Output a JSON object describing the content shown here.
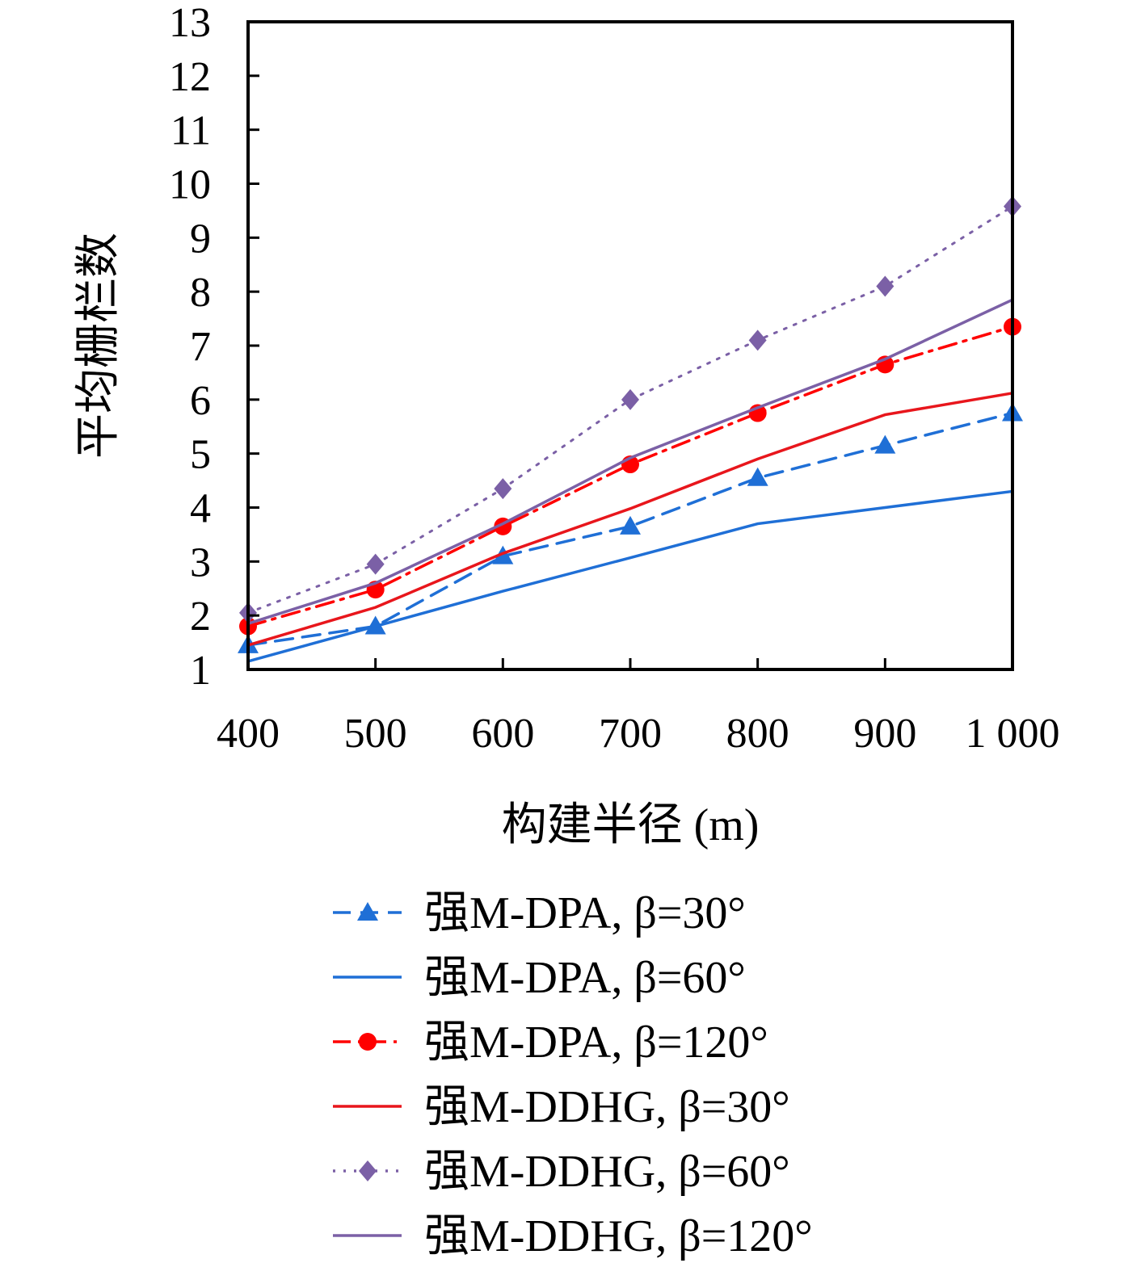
{
  "chart_data": {
    "type": "line",
    "xlabel": "构建半径 (m)",
    "ylabel": "平均栅栏数",
    "x": [
      400,
      500,
      600,
      700,
      800,
      900,
      1000
    ],
    "x_tick_labels": [
      "400",
      "500",
      "600",
      "700",
      "800",
      "900",
      "1 000"
    ],
    "ylim": [
      1,
      13
    ],
    "y_ticks": [
      1,
      2,
      3,
      4,
      5,
      6,
      7,
      8,
      9,
      10,
      11,
      12,
      13
    ],
    "grid": false,
    "legend_position": "below",
    "series": [
      {
        "name": "强M-DPA,  β=30°",
        "values": [
          1.45,
          1.8,
          3.1,
          3.65,
          4.55,
          5.15,
          5.75
        ],
        "color": "#1f6fd6",
        "line": "dashed",
        "marker": "triangle"
      },
      {
        "name": "强M-DPA,  β=60°",
        "values": [
          1.15,
          1.8,
          2.45,
          3.07,
          3.7,
          4.0,
          4.3
        ],
        "color": "#1f6fd6",
        "line": "solid",
        "marker": "none"
      },
      {
        "name": "强M-DPA,  β=120°",
        "values": [
          1.8,
          2.48,
          3.65,
          4.8,
          5.75,
          6.65,
          7.35
        ],
        "color": "#ff0000",
        "line": "dashdot",
        "marker": "circle"
      },
      {
        "name": "强M-DDHG,  β=30°",
        "values": [
          1.45,
          2.15,
          3.15,
          3.98,
          4.9,
          5.72,
          6.12
        ],
        "color": "#e8161c",
        "line": "solid",
        "marker": "none"
      },
      {
        "name": "强M-DDHG,  β=60°",
        "values": [
          2.05,
          2.95,
          4.35,
          6.0,
          7.1,
          8.1,
          9.58
        ],
        "color": "#7b60a6",
        "line": "dotted",
        "marker": "diamond"
      },
      {
        "name": "强M-DDHG,  β=120°",
        "values": [
          1.85,
          2.6,
          3.7,
          4.92,
          5.85,
          6.75,
          7.85
        ],
        "color": "#7b60a6",
        "line": "solid",
        "marker": "none"
      }
    ]
  }
}
